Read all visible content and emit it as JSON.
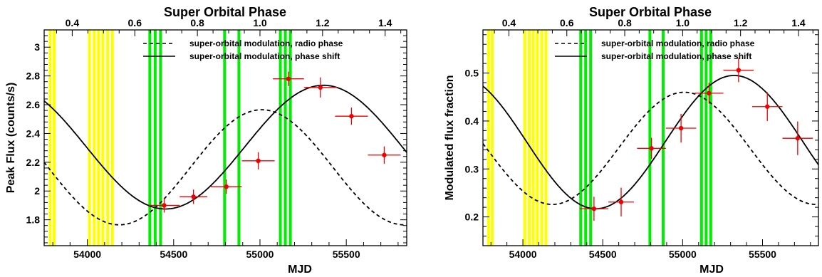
{
  "chart_data": [
    {
      "type": "line",
      "title": "Super Orbital Phase",
      "xlabel": "MJD",
      "ylabel": "Peak Flux (counts/s)",
      "xlim": [
        53750,
        55850
      ],
      "ylim": [
        1.62,
        3.12
      ],
      "x_ticks": [
        "54000",
        "54500",
        "55000",
        "55500"
      ],
      "y_ticks": [
        "1.8",
        "2",
        "2.2",
        "2.4",
        "2.6",
        "2.8",
        "3"
      ],
      "top_axis": {
        "label": "Super Orbital Phase",
        "ticks": [
          "0.4",
          "0.6",
          "0.8",
          "1.0",
          "1.2",
          "1.4"
        ]
      },
      "yellow_bands_mjd": [
        53785,
        53808,
        54012,
        54040,
        54065,
        54090,
        54118,
        54145
      ],
      "green_bands_mjd": [
        54362,
        54393,
        54424,
        54795,
        54878,
        55118,
        55147,
        55176
      ],
      "band_colors": {
        "yellow": "#ffff00",
        "green": "#00ee00"
      },
      "legend": {
        "placement": "top-right",
        "entries": [
          "super-orbital modulation, radio phase",
          "super-orbital modulation, phase shift"
        ]
      },
      "series": [
        {
          "name": "super-orbital modulation, radio phase",
          "style": "dashed",
          "color": "#000000",
          "model": {
            "mean": 2.165,
            "amplitude": 0.4,
            "peak_mjd": 55010,
            "period": 1650
          }
        },
        {
          "name": "super-orbital modulation, phase shift",
          "style": "solid",
          "color": "#000000",
          "model": {
            "mean": 2.305,
            "amplitude": 0.43,
            "peak_mjd": 55368,
            "period": 1830
          }
        }
      ],
      "points": {
        "color": "#ee0000",
        "x": [
          54445,
          54615,
          54805,
          54990,
          55165,
          55350,
          55530,
          55720
        ],
        "y": [
          1.9,
          1.96,
          2.03,
          2.21,
          2.78,
          2.72,
          2.52,
          2.25
        ],
        "xerr": [
          90,
          80,
          90,
          95,
          90,
          95,
          95,
          95
        ],
        "yerr": [
          0.05,
          0.05,
          0.05,
          0.06,
          0.05,
          0.07,
          0.06,
          0.06
        ]
      }
    },
    {
      "type": "line",
      "title": "Super Orbital Phase",
      "xlabel": "MJD",
      "ylabel": "Modulated flux fraction",
      "xlim": [
        53750,
        55850
      ],
      "ylim": [
        0.14,
        0.59
      ],
      "x_ticks": [
        "54000",
        "54500",
        "55000",
        "55500"
      ],
      "y_ticks": [
        "0.2",
        "0.3",
        "0.4",
        "0.5"
      ],
      "top_axis": {
        "label": "Super Orbital Phase",
        "ticks": [
          "0.4",
          "0.6",
          "0.8",
          "1.0",
          "1.2",
          "1.4"
        ]
      },
      "yellow_bands_mjd": [
        53785,
        53808,
        54012,
        54040,
        54065,
        54090,
        54118,
        54145
      ],
      "green_bands_mjd": [
        54362,
        54393,
        54424,
        54795,
        54878,
        55118,
        55147,
        55176
      ],
      "band_colors": {
        "yellow": "#ffff00",
        "green": "#00ee00"
      },
      "legend": {
        "placement": "top-right",
        "entries": [
          "super-orbital modulation, radio phase",
          "super-orbital modulation, phase shift"
        ]
      },
      "series": [
        {
          "name": "super-orbital modulation, radio phase",
          "style": "dashed",
          "color": "#000000",
          "model": {
            "mean": 0.343,
            "amplitude": 0.117,
            "peak_mjd": 55010,
            "period": 1650
          }
        },
        {
          "name": "super-orbital modulation, phase shift",
          "style": "solid",
          "color": "#000000",
          "model": {
            "mean": 0.356,
            "amplitude": 0.139,
            "peak_mjd": 55322,
            "period": 1730
          }
        }
      ],
      "points": {
        "color": "#ee0000",
        "x": [
          54445,
          54615,
          54805,
          54990,
          55165,
          55350,
          55530,
          55720
        ],
        "y": [
          0.217,
          0.231,
          0.343,
          0.385,
          0.458,
          0.506,
          0.43,
          0.364
        ],
        "xerr": [
          90,
          80,
          90,
          95,
          90,
          95,
          95,
          95
        ],
        "yerr": [
          0.025,
          0.03,
          0.022,
          0.03,
          0.022,
          0.025,
          0.03,
          0.035
        ]
      }
    }
  ]
}
